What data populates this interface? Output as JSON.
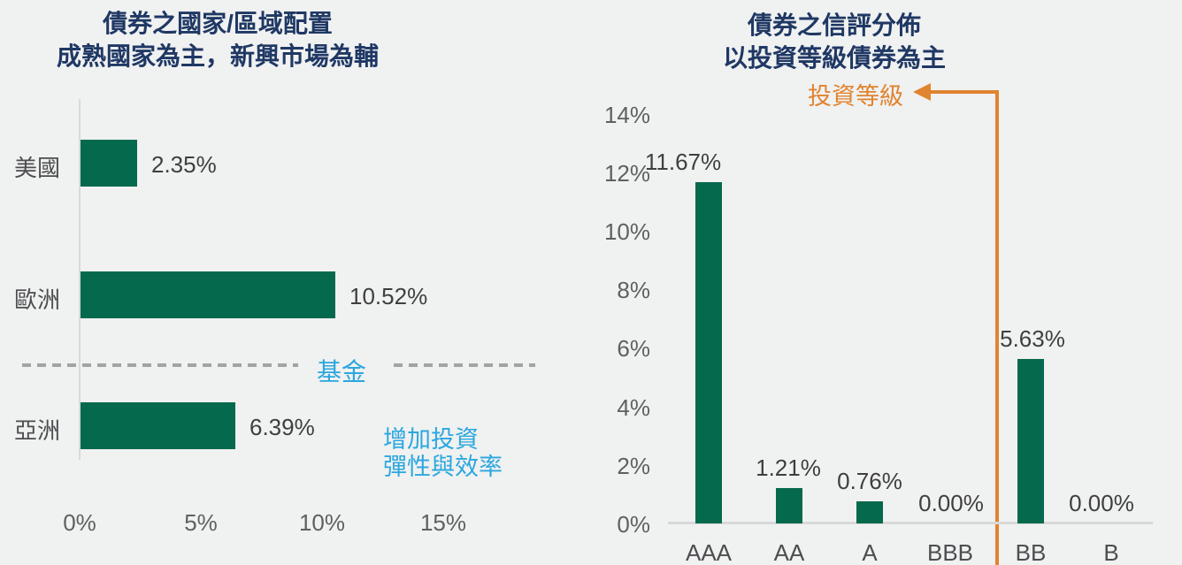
{
  "colors": {
    "background": "#F0F1F1",
    "bar_green": "#05694E",
    "title_navy": "#1F3864",
    "accent_blue": "#2BA7DF",
    "accent_orange": "#E0842F",
    "axis_gray": "#D9D9D9"
  },
  "chart_data": [
    {
      "id": "country-allocation",
      "type": "bar",
      "orientation": "horizontal",
      "title_line1": "債券之國家/區域配置",
      "title_line2": "成熟國家為主，新興市場為輔",
      "categories": [
        "美國",
        "歐洲",
        "亞洲"
      ],
      "values": [
        2.35,
        10.52,
        6.39
      ],
      "value_labels": [
        "2.35%",
        "10.52%",
        "6.39%"
      ],
      "x_ticks": [
        "0%",
        "5%",
        "10%",
        "15%"
      ],
      "xlim": [
        0,
        15
      ],
      "grid": false,
      "annotations": {
        "fund_divider_label": "基金",
        "note_line1": "增加投資",
        "note_line2": "彈性與效率"
      }
    },
    {
      "id": "credit-rating",
      "type": "bar",
      "orientation": "vertical",
      "title_line1": "債券之信評分佈",
      "title_line2": "以投資等級債券為主",
      "categories": [
        "AAA",
        "AA",
        "A",
        "BBB",
        "BB",
        "B"
      ],
      "values": [
        11.67,
        1.21,
        0.76,
        0.0,
        5.63,
        0.0
      ],
      "value_labels": [
        "11.67%",
        "1.21%",
        "0.76%",
        "0.00%",
        "5.63%",
        "0.00%"
      ],
      "y_ticks": [
        "0%",
        "2%",
        "4%",
        "6%",
        "8%",
        "10%",
        "12%",
        "14%"
      ],
      "ylim": [
        0,
        14
      ],
      "grid": false,
      "annotations": {
        "investment_grade_label": "投資等級"
      }
    }
  ]
}
